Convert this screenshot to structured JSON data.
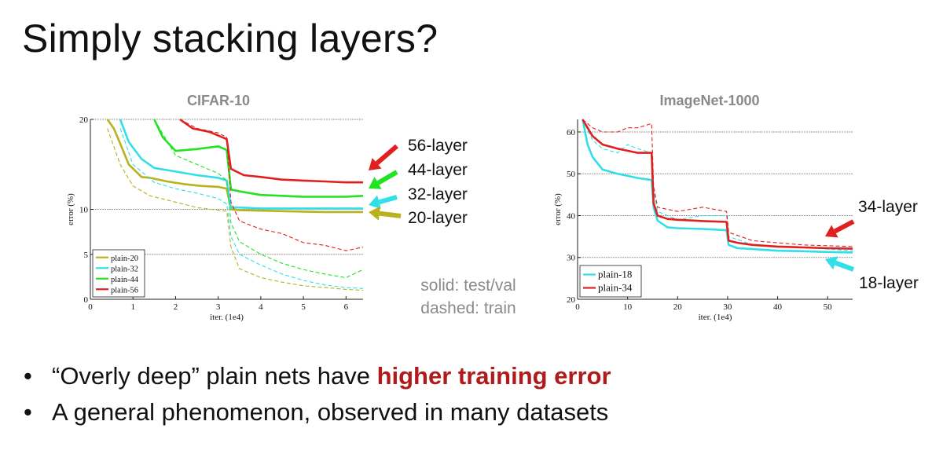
{
  "slide": {
    "title": "Simply stacking layers?",
    "legend_note": [
      "solid: test/val",
      "dashed: train"
    ],
    "bullets": [
      {
        "dot": "•",
        "text": "“Overly deep” plain nets have ",
        "highlight": "higher training error"
      },
      {
        "dot": "•",
        "text": "A general phenomenon, observed in many datasets"
      }
    ],
    "highlight_color": "#b11a1a"
  },
  "chart_data": [
    {
      "type": "line",
      "title": "CIFAR-10",
      "xlabel": "iter. (1e4)",
      "ylabel": "error (%)",
      "xlim": [
        0,
        6.4
      ],
      "ylim": [
        0,
        20
      ],
      "xticks": [
        0,
        1,
        2,
        3,
        4,
        5,
        6
      ],
      "yticks": [
        0,
        5,
        10,
        20
      ],
      "grid_y": [
        5,
        10,
        20
      ],
      "legend": "bottom-left",
      "series": [
        {
          "name": "plain-20",
          "color": "#b9b21a",
          "test": {
            "x": [
              0.4,
              0.55,
              0.7,
              0.9,
              1.2,
              1.4,
              1.8,
              2.2,
              2.6,
              3.0,
              3.2,
              3.3,
              3.5,
              4.0,
              4.5,
              5.0,
              5.5,
              6.0,
              6.4
            ],
            "y": [
              20,
              19,
              17.3,
              15,
              13.6,
              13.5,
              13.1,
              12.8,
              12.6,
              12.5,
              12.3,
              10.0,
              9.9,
              9.85,
              9.8,
              9.75,
              9.7,
              9.7,
              9.7
            ]
          },
          "train": {
            "x": [
              0.4,
              0.7,
              1.0,
              1.4,
              2.0,
              2.5,
              3.0,
              3.2,
              3.3,
              3.5,
              4.0,
              4.5,
              5.0,
              5.5,
              6.0,
              6.4
            ],
            "y": [
              19,
              15,
              12.6,
              11.5,
              10.8,
              10.2,
              9.9,
              9.8,
              5.8,
              3.4,
              2.4,
              1.9,
              1.5,
              1.3,
              1.1,
              1.0
            ]
          }
        },
        {
          "name": "plain-32",
          "color": "#32dfe6",
          "test": {
            "x": [
              0.7,
              0.9,
              1.2,
              1.5,
              2.0,
              2.5,
              3.0,
              3.2,
              3.3,
              3.5,
              4.0,
              4.5,
              5.0,
              5.5,
              6.0,
              6.4
            ],
            "y": [
              20,
              17.5,
              15.6,
              14.6,
              14.2,
              13.8,
              13.5,
              13.2,
              10.2,
              10.2,
              10.1,
              10.1,
              10.1,
              10.1,
              10.1,
              10.1
            ]
          },
          "train": {
            "x": [
              0.7,
              1.0,
              1.5,
              2.0,
              2.5,
              3.0,
              3.2,
              3.3,
              3.5,
              4.0,
              4.5,
              5.0,
              5.5,
              6.0,
              6.4
            ],
            "y": [
              19,
              15,
              13,
              12.3,
              11.8,
              11.2,
              10.6,
              7.0,
              5.0,
              3.8,
              2.8,
              2.1,
              1.6,
              1.3,
              1.2
            ]
          }
        },
        {
          "name": "plain-44",
          "color": "#22e322",
          "test": {
            "x": [
              1.5,
              1.7,
              2.0,
              2.5,
              3.0,
              3.2,
              3.3,
              3.5,
              4.0,
              4.5,
              5.0,
              5.5,
              6.0,
              6.4
            ],
            "y": [
              20,
              18.0,
              16.5,
              16.7,
              17.0,
              16.6,
              12.2,
              12.0,
              11.6,
              11.5,
              11.4,
              11.4,
              11.4,
              11.5
            ]
          },
          "train": {
            "x": [
              1.5,
              2.0,
              2.5,
              3.0,
              3.2,
              3.3,
              3.5,
              4.0,
              4.5,
              5.0,
              5.5,
              6.0,
              6.4
            ],
            "y": [
              20,
              16,
              15,
              14,
              13.2,
              8.5,
              6.4,
              5.0,
              4.0,
              3.3,
              2.8,
              2.4,
              3.3
            ]
          }
        },
        {
          "name": "plain-56",
          "color": "#e01f1f",
          "test": {
            "x": [
              2.1,
              2.4,
              2.8,
              3.0,
              3.2,
              3.3,
              3.6,
              4.0,
              4.5,
              5.0,
              5.5,
              6.0,
              6.4
            ],
            "y": [
              20,
              19,
              18.6,
              18.2,
              17.8,
              14.5,
              13.8,
              13.6,
              13.3,
              13.2,
              13.1,
              13.0,
              13.0
            ]
          },
          "train": {
            "x": [
              2.1,
              2.5,
              3.0,
              3.2,
              3.3,
              3.5,
              4.0,
              4.5,
              5.0,
              5.5,
              6.0,
              6.4
            ],
            "y": [
              20,
              19,
              18.5,
              18,
              10.8,
              8.7,
              7.8,
              7.3,
              6.3,
              6.0,
              5.4,
              5.8
            ]
          }
        }
      ],
      "arrow_labels": [
        "56-layer",
        "44-layer",
        "32-layer",
        "20-layer"
      ]
    },
    {
      "type": "line",
      "title": "ImageNet-1000",
      "xlabel": "iter. (1e4)",
      "ylabel": "error (%)",
      "xlim": [
        0,
        55
      ],
      "ylim": [
        20,
        63
      ],
      "xticks": [
        0,
        10,
        20,
        30,
        40,
        50
      ],
      "yticks": [
        20,
        30,
        40,
        50,
        60
      ],
      "grid_y": [
        30,
        40,
        50,
        60
      ],
      "legend": "bottom-left",
      "series": [
        {
          "name": "plain-18",
          "color": "#32dfe6",
          "test": {
            "x": [
              1,
              2,
              3,
              5,
              8,
              10,
              12,
              14.8,
              15.2,
              16,
              18,
              20,
              25,
              29.8,
              30.2,
              32,
              35,
              40,
              45,
              50,
              55
            ],
            "y": [
              63,
              57,
              54,
              51,
              50,
              49.5,
              49,
              48.5,
              42,
              38.8,
              37.2,
              37,
              36.8,
              36.5,
              33,
              32.2,
              32,
              31.6,
              31.5,
              31.3,
              31.2
            ]
          },
          "train": {
            "x": [
              1,
              3,
              5,
              8,
              10,
              12,
              14.8,
              15.2,
              16,
              20,
              25,
              29.8,
              30.2,
              35,
              40,
              45,
              50,
              55
            ],
            "y": [
              63,
              58,
              56,
              55,
              57,
              56,
              55,
              46,
              41,
              39,
              40,
              40,
              35,
              33,
              32.5,
              32.5,
              32,
              31.6
            ]
          }
        },
        {
          "name": "plain-34",
          "color": "#e01f1f",
          "test": {
            "x": [
              1,
              2,
              3,
              5,
              8,
              10,
              12,
              14.8,
              15.2,
              16,
              18,
              20,
              25,
              29.8,
              30.2,
              32,
              35,
              40,
              45,
              50,
              55
            ],
            "y": [
              63,
              61,
              59,
              57,
              56,
              55.5,
              55,
              55,
              43,
              40,
              39.2,
              39,
              38.7,
              38.5,
              34,
              33.5,
              33,
              32.6,
              32.4,
              32.2,
              32.1
            ]
          },
          "train": {
            "x": [
              1,
              3,
              5,
              8,
              10,
              12,
              14.8,
              15.2,
              16,
              20,
              25,
              29.8,
              30.2,
              35,
              40,
              45,
              50,
              55
            ],
            "y": [
              63,
              61,
              60,
              60,
              61,
              61,
              62,
              47,
              42,
              41,
              42,
              41,
              36,
              34,
              33.5,
              33,
              32.8,
              32.6
            ]
          }
        }
      ],
      "arrow_labels": [
        "34-layer",
        "18-layer"
      ]
    }
  ]
}
